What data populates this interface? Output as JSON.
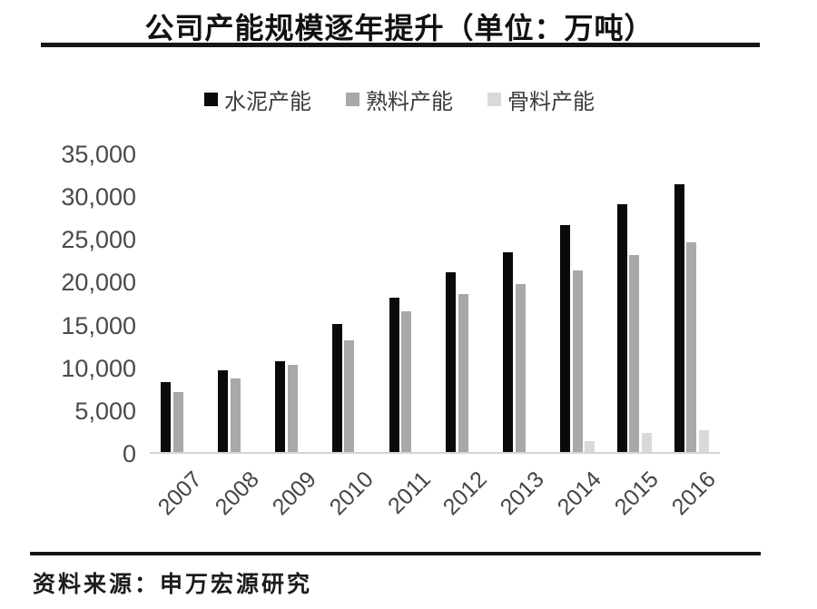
{
  "title": "公司产能规模逐年提升（单位：万吨）",
  "source": "资料来源：申万宏源研究",
  "colors": {
    "cement": "#0a0a0a",
    "clinker": "#a8a8a8",
    "aggregate": "#d9d9d9",
    "rule": "#161616",
    "axis_line": "#d4d4d4",
    "axis_text": "#4a4a4a"
  },
  "chart_data": {
    "type": "bar",
    "title": "公司产能规模逐年提升（单位：万吨）",
    "xlabel": "",
    "ylabel": "",
    "unit": "万吨",
    "categories": [
      "2007",
      "2008",
      "2009",
      "2010",
      "2011",
      "2012",
      "2013",
      "2014",
      "2015",
      "2016"
    ],
    "series": [
      {
        "name": "水泥产能",
        "color_key": "cement",
        "values": [
          8200,
          9500,
          10600,
          15000,
          18000,
          21000,
          23300,
          26500,
          29000,
          31300
        ]
      },
      {
        "name": "熟料产能",
        "color_key": "clinker",
        "values": [
          7000,
          8600,
          10200,
          13000,
          16400,
          18500,
          19600,
          21200,
          23000,
          24500
        ]
      },
      {
        "name": "骨料产能",
        "color_key": "aggregate",
        "values": [
          null,
          null,
          null,
          null,
          null,
          null,
          null,
          1300,
          2200,
          2500
        ]
      }
    ],
    "ylim": [
      0,
      35000
    ],
    "y_tick_step": 5000,
    "y_tick_labels": [
      "0",
      "5,000",
      "10,000",
      "15,000",
      "20,000",
      "25,000",
      "30,000",
      "35,000"
    ],
    "legend_position": "top",
    "grid": false,
    "x_tick_rotation_deg": -45
  }
}
